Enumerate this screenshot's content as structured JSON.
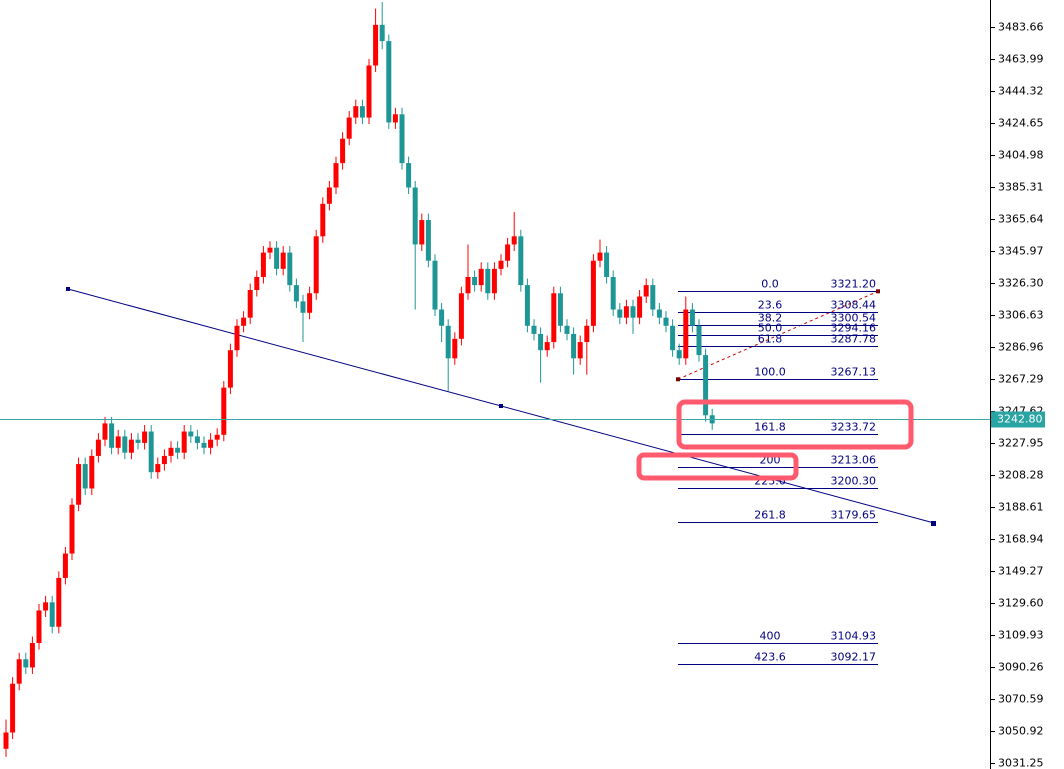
{
  "chart_data": {
    "type": "candlestick",
    "up_color": "#ff0000",
    "down_color": "#1e9696",
    "ylim": [
      3027.56,
      3500.26
    ],
    "yticks": [
      3483.66,
      3463.99,
      3444.32,
      3424.65,
      3404.98,
      3385.31,
      3365.64,
      3345.97,
      {
        "value": 3326.3,
        "label": "3326.30"
      },
      3306.63,
      3286.96,
      3267.29,
      3247.62,
      3227.95,
      3208.28,
      3188.61,
      3168.94,
      3149.27,
      {
        "value": 3129.6,
        "label": "3129.60"
      },
      3109.93,
      3090.26,
      3070.59,
      3050.92,
      3031.25
    ],
    "current_price": {
      "value": 3242.8,
      "label": "3242.80"
    },
    "fib_levels": [
      {
        "level": "0.0",
        "price": {
          "value": 3321.2,
          "label": "3321.20"
        }
      },
      {
        "level": "23.6",
        "price": 3308.44
      },
      {
        "level": "38.2",
        "price": 3300.54
      },
      {
        "level": "50.0",
        "price": 3294.16
      },
      {
        "level": "61.8",
        "price": 3287.78
      },
      {
        "level": "100.0",
        "price": 3267.13
      },
      {
        "level": "161.8",
        "price": 3233.72
      },
      {
        "level": "200",
        "price": 3213.06
      },
      {
        "level": "223.6",
        "price": {
          "value": 3200.3,
          "label": "3200.30"
        }
      },
      {
        "level": "261.8",
        "price": 3179.65
      },
      {
        "level": "400",
        "price": 3104.93
      },
      {
        "level": "423.6",
        "price": 3092.17
      }
    ],
    "candles": [
      [
        3040,
        3058,
        3035,
        3050
      ],
      [
        3050,
        3084,
        3046,
        3080
      ],
      [
        3080,
        3099,
        3076,
        3095
      ],
      [
        3095,
        3099,
        3086,
        3090
      ],
      [
        3090,
        3109,
        3086,
        3105
      ],
      [
        3105,
        3129,
        3101,
        3125
      ],
      [
        3125,
        3134,
        3121,
        3130
      ],
      [
        3130,
        3134,
        3111,
        3115
      ],
      [
        3115,
        3149,
        3111,
        3145
      ],
      [
        3145,
        3164,
        3141,
        3160
      ],
      [
        3160,
        3194,
        3156,
        3190
      ],
      [
        3190,
        3219,
        3186,
        3215
      ],
      [
        3215,
        3219,
        3196,
        3200
      ],
      [
        3200,
        3224,
        3196,
        3220
      ],
      [
        3220,
        3234,
        3216,
        3230
      ],
      [
        3230,
        3244,
        3226,
        3240
      ],
      [
        3240,
        3244,
        3221,
        3225
      ],
      [
        3225,
        3236,
        3221,
        3232
      ],
      [
        3232,
        3236,
        3218,
        3222
      ],
      [
        3222,
        3234,
        3218,
        3230
      ],
      [
        3230,
        3234,
        3224,
        3228
      ],
      [
        3228,
        3239,
        3224,
        3235
      ],
      [
        3235,
        3239,
        3206,
        3210
      ],
      [
        3210,
        3219,
        3206,
        3215
      ],
      [
        3215,
        3224,
        3211,
        3220
      ],
      [
        3220,
        3229,
        3216,
        3225
      ],
      [
        3225,
        3229,
        3218,
        3222
      ],
      [
        3222,
        3239,
        3218,
        3235
      ],
      [
        3235,
        3239,
        3228,
        3232
      ],
      [
        3232,
        3236,
        3224,
        3228
      ],
      [
        3228,
        3232,
        3221,
        3225
      ],
      [
        3225,
        3234,
        3221,
        3230
      ],
      [
        3230,
        3237,
        3226,
        3233
      ],
      [
        3233,
        3266,
        3229,
        3262
      ],
      [
        3262,
        3289,
        3258,
        3285
      ],
      [
        3285,
        3304,
        3281,
        3300
      ],
      [
        3300,
        3309,
        3296,
        3305
      ],
      [
        3305,
        3326,
        3301,
        3322
      ],
      [
        3322,
        3334,
        3318,
        3330
      ],
      [
        3330,
        3349,
        3326,
        3345
      ],
      [
        3345,
        3352,
        3341,
        3348
      ],
      [
        3348,
        3352,
        3331,
        3335
      ],
      [
        3335,
        3349,
        3331,
        3345
      ],
      [
        3345,
        3349,
        3321,
        3325
      ],
      [
        3325,
        3329,
        3311,
        3315
      ],
      [
        3315,
        3319,
        3290,
        3308
      ],
      [
        3308,
        3324,
        3304,
        3320
      ],
      [
        3320,
        3359,
        3316,
        3355
      ],
      [
        3355,
        3379,
        3351,
        3375
      ],
      [
        3375,
        3389,
        3371,
        3385
      ],
      [
        3385,
        3404,
        3381,
        3400
      ],
      [
        3400,
        3419,
        3396,
        3415
      ],
      [
        3415,
        3432,
        3411,
        3428
      ],
      [
        3428,
        3439,
        3424,
        3435
      ],
      [
        3435,
        3439,
        3424,
        3428
      ],
      [
        3428,
        3464,
        3424,
        3460
      ],
      [
        3460,
        3495,
        3456,
        3485
      ],
      [
        3485,
        3499,
        3470,
        3475
      ],
      [
        3475,
        3479,
        3421,
        3425
      ],
      [
        3425,
        3434,
        3421,
        3430
      ],
      [
        3430,
        3434,
        3396,
        3400
      ],
      [
        3400,
        3404,
        3381,
        3385
      ],
      [
        3385,
        3389,
        3310,
        3350
      ],
      [
        3350,
        3369,
        3346,
        3365
      ],
      [
        3365,
        3369,
        3336,
        3340
      ],
      [
        3340,
        3344,
        3306,
        3310
      ],
      [
        3310,
        3314,
        3290,
        3300
      ],
      [
        3300,
        3304,
        3260,
        3280
      ],
      [
        3280,
        3296,
        3276,
        3292
      ],
      [
        3292,
        3324,
        3288,
        3320
      ],
      [
        3320,
        3350,
        3316,
        3330
      ],
      [
        3330,
        3334,
        3321,
        3325
      ],
      [
        3325,
        3339,
        3321,
        3335
      ],
      [
        3335,
        3339,
        3316,
        3320
      ],
      [
        3320,
        3339,
        3316,
        3335
      ],
      [
        3335,
        3344,
        3331,
        3340
      ],
      [
        3340,
        3354,
        3336,
        3350
      ],
      [
        3350,
        3370,
        3346,
        3355
      ],
      [
        3355,
        3359,
        3321,
        3325
      ],
      [
        3325,
        3329,
        3296,
        3300
      ],
      [
        3300,
        3304,
        3291,
        3295
      ],
      [
        3295,
        3299,
        3265,
        3285
      ],
      [
        3285,
        3294,
        3281,
        3290
      ],
      [
        3290,
        3324,
        3286,
        3320
      ],
      [
        3320,
        3324,
        3296,
        3300
      ],
      [
        3300,
        3304,
        3291,
        3295
      ],
      [
        3295,
        3299,
        3270,
        3280
      ],
      [
        3280,
        3294,
        3276,
        3290
      ],
      [
        3290,
        3304,
        3270,
        3300
      ],
      [
        3300,
        3344,
        3296,
        3340
      ],
      [
        3340,
        3353,
        3336,
        3345
      ],
      [
        3345,
        3349,
        3326,
        3330
      ],
      [
        3330,
        3334,
        3306,
        3310
      ],
      [
        3310,
        3314,
        3301,
        3305
      ],
      [
        3305,
        3316,
        3301,
        3312
      ],
      [
        3312,
        3316,
        3295,
        3305
      ],
      [
        3305,
        3322,
        3301,
        3318
      ],
      [
        3318,
        3329,
        3314,
        3325
      ],
      [
        3325,
        3329,
        3306,
        3310
      ],
      [
        3310,
        3314,
        3301,
        3305
      ],
      [
        3305,
        3309,
        3296,
        3300
      ],
      [
        3300,
        3304,
        3281,
        3285
      ],
      [
        3285,
        3289,
        3276,
        3280
      ],
      [
        3280,
        3318,
        3276,
        3310
      ],
      [
        3310,
        3314,
        3296,
        3300
      ],
      [
        3300,
        3304,
        3278,
        3282
      ],
      [
        3282,
        3286,
        3241,
        3245
      ],
      [
        3245,
        3249,
        3236,
        3240
      ]
    ]
  }
}
